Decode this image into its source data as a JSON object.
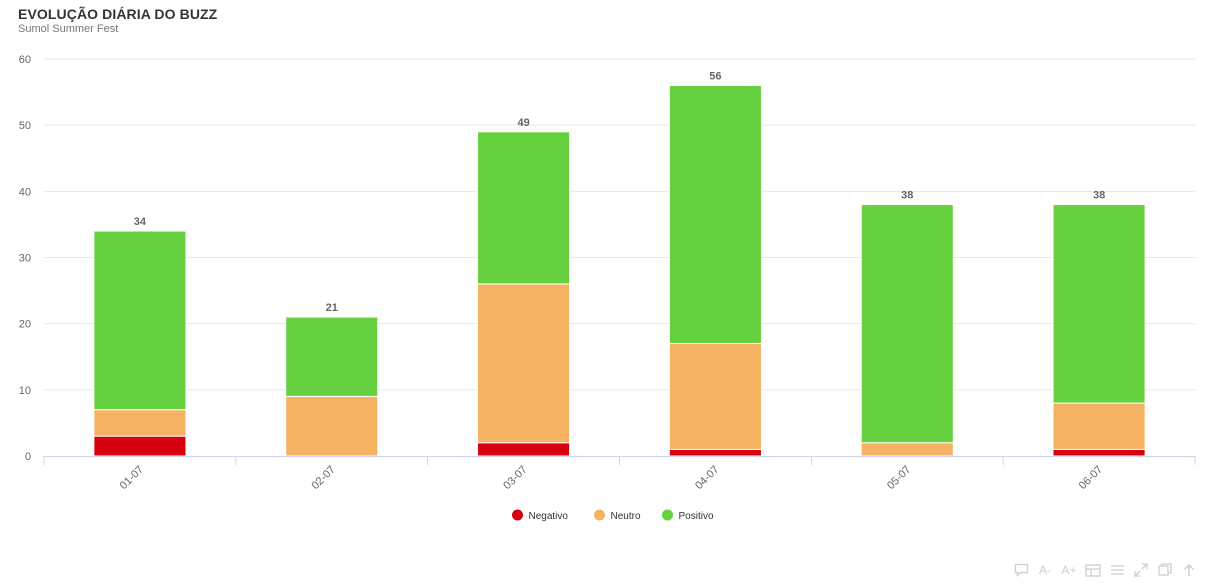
{
  "chart_data": {
    "type": "bar",
    "stacked": true,
    "title": "EVOLUÇÃO DIÁRIA DO BUZZ",
    "subtitle": "Sumol Summer Fest",
    "categories": [
      "01-07",
      "02-07",
      "03-07",
      "04-07",
      "05-07",
      "06-07"
    ],
    "series": [
      {
        "name": "Negativo",
        "color": "#d7000f",
        "values": [
          3,
          0,
          2,
          1,
          0,
          1
        ]
      },
      {
        "name": "Neutro",
        "color": "#f5b263",
        "values": [
          4,
          9,
          24,
          16,
          2,
          7
        ]
      },
      {
        "name": "Positivo",
        "color": "#66d13e",
        "values": [
          27,
          12,
          23,
          39,
          36,
          30
        ]
      }
    ],
    "totals": [
      34,
      21,
      49,
      56,
      38,
      38
    ],
    "ylim": [
      0,
      60
    ],
    "yticks": [
      0,
      10,
      20,
      30,
      40,
      50,
      60
    ],
    "grid": true,
    "legend_position": "bottom-center",
    "xlabel": "",
    "ylabel": ""
  },
  "toolbar": {
    "icons": [
      "comment-icon",
      "font-decrease-icon",
      "font-increase-icon",
      "data-table-icon",
      "legend-list-icon",
      "expand-icon",
      "copy-icon",
      "scroll-top-icon"
    ],
    "font_decrease_label": "A-",
    "font_increase_label": "A+"
  }
}
